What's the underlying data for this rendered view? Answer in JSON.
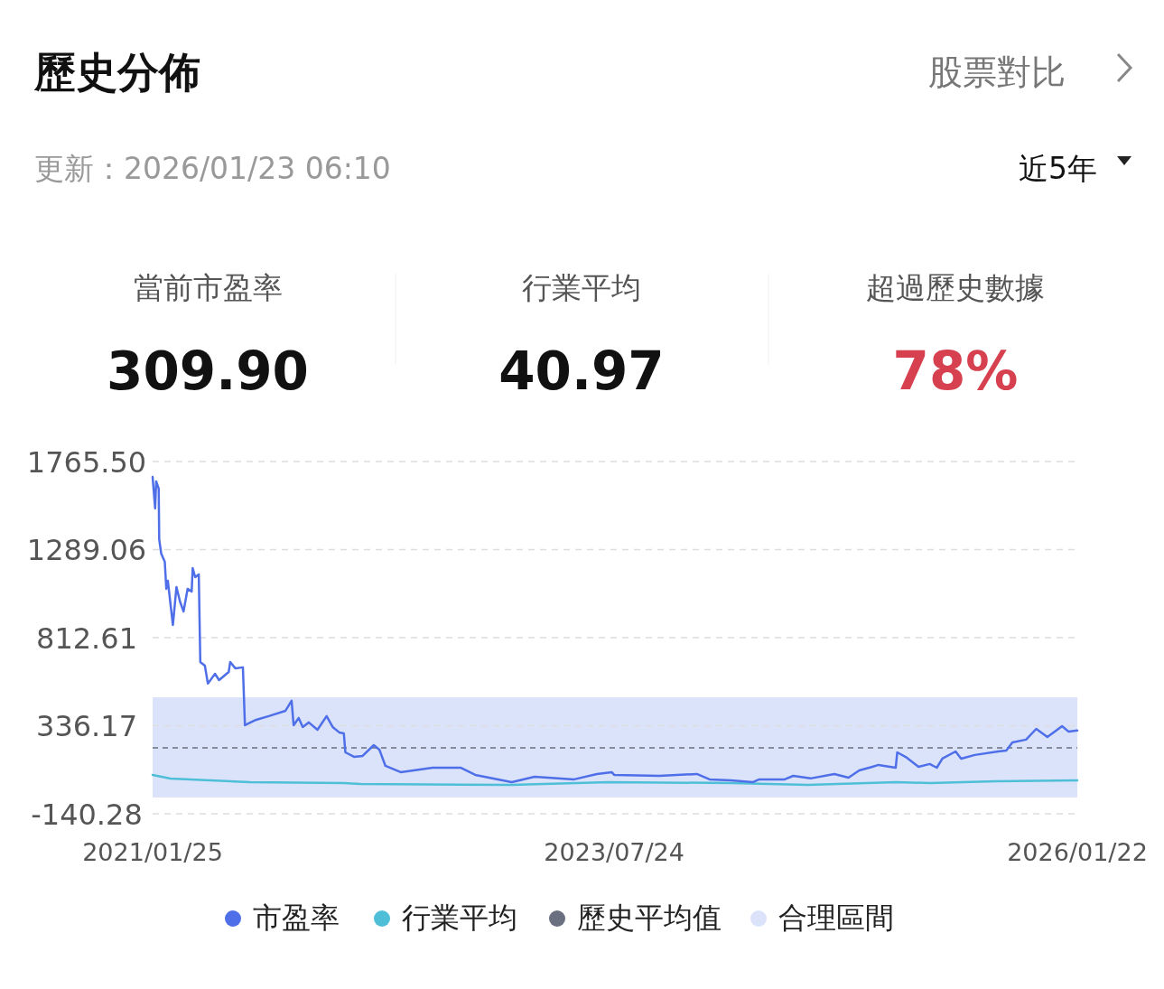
{
  "chart_data": {
    "type": "line",
    "title": "歷史分佈",
    "subtitle": "更新：2026/01/23 06:10",
    "annotations": [
      "股票對比",
      "近5年",
      "當前市盈率",
      "309.90",
      "行業平均",
      "40.97",
      "超過歷史數據",
      "78%"
    ],
    "xlim": [
      "2021-01-25",
      "2026-01-22"
    ],
    "xticks": [
      {
        "value": "2021-01-25",
        "label": "2021/01/25"
      },
      {
        "value": "2023-07-24",
        "label": "2023/07/24"
      },
      {
        "value": "2026-01-22",
        "label": "2026/01/22"
      }
    ],
    "ylim": [
      -140.28,
      1765.5
    ],
    "yticks": [
      -140.28,
      336.17,
      812.61,
      1289.06,
      {
        "value": 1765.5,
        "label": "1765.50"
      }
    ],
    "grid": "y",
    "legend": "bottom",
    "series": [
      {
        "name": "市盈率",
        "color": "#4f6fe8",
        "x": [
          "2021-01-25",
          "2021-01-30",
          "2021-02-01",
          "2021-02-06",
          "2021-02-07",
          "2021-02-11",
          "2021-02-18",
          "2021-02-21",
          "2021-02-24",
          "2021-03-06",
          "2021-03-13",
          "2021-03-20",
          "2021-03-27",
          "2021-04-04",
          "2021-04-12",
          "2021-04-14",
          "2021-04-19",
          "2021-04-26",
          "2021-04-29",
          "2021-05-08",
          "2021-05-14",
          "2021-05-28",
          "2021-06-05",
          "2021-06-24",
          "2021-06-27",
          "2021-07-07",
          "2021-07-22",
          "2021-07-26",
          "2021-08-17",
          "2021-09-11",
          "2021-10-14",
          "2021-10-26",
          "2021-10-30",
          "2021-11-09",
          "2021-11-17",
          "2021-11-29",
          "2021-12-16",
          "2022-01-03",
          "2022-01-15",
          "2022-01-28",
          "2022-02-06",
          "2022-02-09",
          "2022-02-26",
          "2022-03-15",
          "2022-04-06",
          "2022-04-17",
          "2022-04-29",
          "2022-05-29",
          "2022-07-31",
          "2022-09-24",
          "2022-10-23",
          "2023-01-03",
          "2023-02-17",
          "2023-05-06",
          "2023-06-20",
          "2023-07-19",
          "2023-07-24",
          "2023-10-21",
          "2024-01-03",
          "2024-01-28",
          "2024-03-10",
          "2024-04-23",
          "2024-05-05",
          "2024-06-24",
          "2024-07-11",
          "2024-08-14",
          "2024-09-30",
          "2024-10-28",
          "2024-11-18",
          "2024-12-14",
          "2024-12-26",
          "2025-01-29",
          "2025-02-01",
          "2025-02-20",
          "2025-03-15",
          "2025-04-06",
          "2025-04-20",
          "2025-05-01",
          "2025-05-27",
          "2025-06-07",
          "2025-07-04",
          "2025-08-19",
          "2025-09-04",
          "2025-09-16",
          "2025-10-13",
          "2025-11-02",
          "2025-11-24",
          "2025-12-23",
          "2026-01-05",
          "2026-01-22"
        ],
        "values": [
          1682,
          1512,
          1658,
          1619,
          1345,
          1267,
          1223,
          1077,
          1121,
          881,
          1086,
          1008,
          954,
          1077,
          1062,
          1189,
          1140,
          1155,
          681,
          661,
          564,
          617,
          583,
          627,
          681,
          647,
          652,
          339,
          368,
          388,
          417,
          471,
          339,
          378,
          329,
          354,
          314,
          388,
          329,
          300,
          295,
          192,
          168,
          173,
          231,
          207,
          119,
          85,
          109,
          109,
          70,
          31,
          60,
          46,
          75,
          85,
          70,
          65,
          75,
          46,
          41,
          31,
          46,
          46,
          65,
          51,
          75,
          55,
          94,
          114,
          124,
          109,
          192,
          163,
          114,
          129,
          109,
          158,
          197,
          158,
          178,
          197,
          202,
          246,
          261,
          319,
          275,
          334,
          304,
          310
        ]
      },
      {
        "name": "行業平均",
        "color": "#4fbfd8",
        "x": [
          "2021-01-25",
          "2021-03-01",
          "2021-05-19",
          "2021-08-05",
          "2022-02-06",
          "2022-03-11",
          "2023-01-03",
          "2023-07-12",
          "2024-03-10",
          "2024-08-09",
          "2025-01-29",
          "2025-04-06",
          "2025-08-14",
          "2026-01-22"
        ],
        "values": [
          70,
          50,
          41,
          31,
          26,
          21,
          16,
          31,
          26,
          16,
          31,
          26,
          36,
          41
        ]
      }
    ],
    "ref_lines": [
      {
        "axis": "y",
        "value": 216,
        "label": "歷史平均值",
        "color": "#6b7080",
        "line_style": "dashed"
      }
    ],
    "bands": [
      {
        "axis": "y",
        "from": -52,
        "to": 490,
        "label": "合理區間",
        "color": "#dbe3fb"
      }
    ]
  }
}
